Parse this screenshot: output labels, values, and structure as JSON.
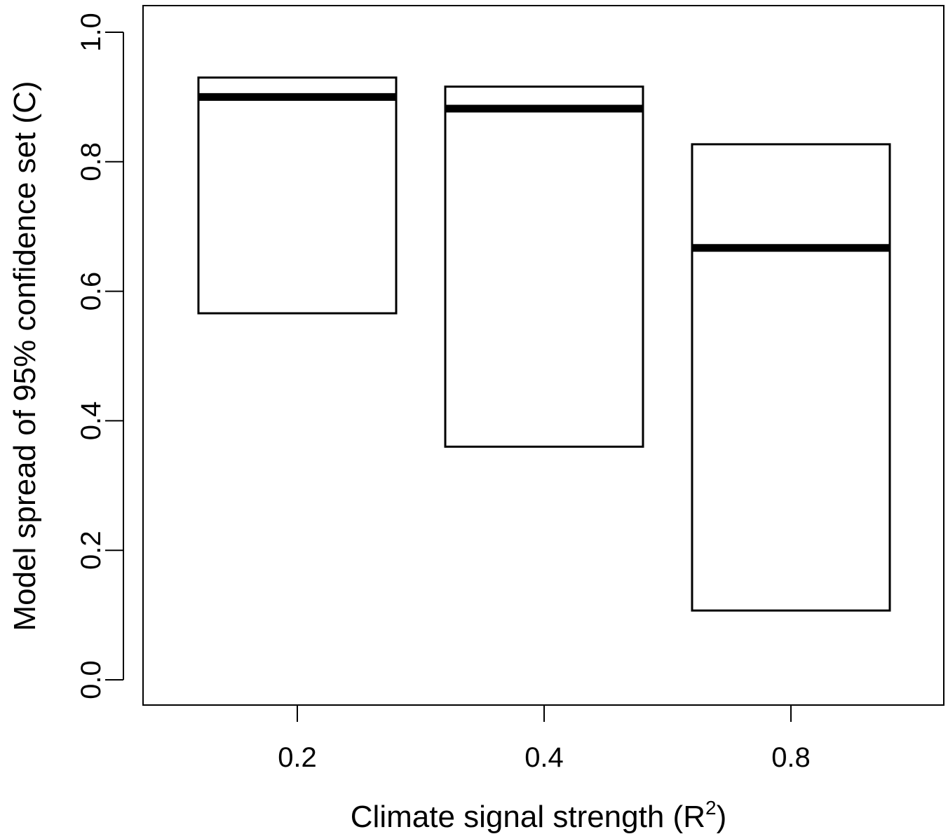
{
  "chart_data": {
    "type": "box",
    "title": "",
    "xlabel": "Climate signal strength (R",
    "xlabel_sup": "2",
    "xlabel_end": ")",
    "ylabel": "Model spread of 95% confidence set (C)",
    "ylim": [
      0.0,
      1.0
    ],
    "yticks": [
      "0.0",
      "0.2",
      "0.4",
      "0.6",
      "0.8",
      "1.0"
    ],
    "categories": [
      "0.2",
      "0.4",
      "0.8"
    ],
    "boxes": [
      {
        "category": "0.2",
        "lower": 0.566,
        "median": 0.9,
        "upper": 0.93
      },
      {
        "category": "0.4",
        "lower": 0.36,
        "median": 0.882,
        "upper": 0.916
      },
      {
        "category": "0.8",
        "lower": 0.107,
        "median": 0.667,
        "upper": 0.827
      }
    ],
    "grid": false,
    "legend": "none"
  }
}
